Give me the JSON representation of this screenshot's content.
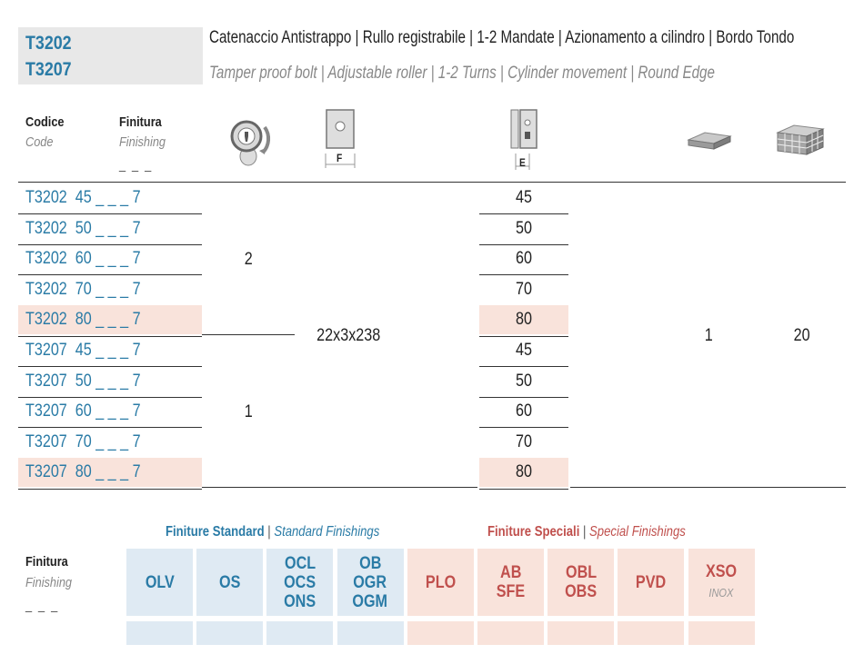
{
  "header": {
    "codes": [
      "T3202",
      "T3207"
    ],
    "title_it": "Catenaccio Antistrappo | Rullo registrabile | 1-2 Mandate | Azionamento a cilindro | Bordo Tondo",
    "title_en": "Tamper proof bolt | Adjustable roller | 1-2 Turns | Cylinder movement | Round Edge"
  },
  "columns": {
    "code_it": "Codice",
    "code_en": "Code",
    "finish_it": "Finitura",
    "finish_en": "Finishing",
    "finish_dash": "_ _ _",
    "f_label": "F",
    "e_label": "E"
  },
  "rows": [
    {
      "code": "T3202  45 _ _ _ 7",
      "e": "45",
      "highlight": false
    },
    {
      "code": "T3202  50 _ _ _ 7",
      "e": "50",
      "highlight": false
    },
    {
      "code": "T3202  60 _ _ _ 7",
      "e": "60",
      "highlight": false
    },
    {
      "code": "T3202  70 _ _ _ 7",
      "e": "70",
      "highlight": false
    },
    {
      "code": "T3202  80 _ _ _ 7",
      "e": "80",
      "highlight": true
    },
    {
      "code": "T3207  45 _ _ _ 7",
      "e": "45",
      "highlight": false
    },
    {
      "code": "T3207  50 _ _ _ 7",
      "e": "50",
      "highlight": false
    },
    {
      "code": "T3207  60 _ _ _ 7",
      "e": "60",
      "highlight": false
    },
    {
      "code": "T3207  70 _ _ _ 7",
      "e": "70",
      "highlight": false
    },
    {
      "code": "T3207  80 _ _ _ 7",
      "e": "80",
      "highlight": true
    }
  ],
  "values": {
    "turns_t3202": "2",
    "turns_t3207": "1",
    "front_size": "22x3x238",
    "pack_qty": "1",
    "box_qty": "20"
  },
  "finishings": {
    "standard_it": "Finiture Standard",
    "standard_en": "Standard Finishings",
    "special_it": "Finiture Speciali",
    "special_en": "Special Finishings",
    "label_it": "Finitura",
    "label_en": "Finishing",
    "label_dash": "_ _ _",
    "standard": [
      {
        "lines": [
          "OLV"
        ]
      },
      {
        "lines": [
          "OS"
        ]
      },
      {
        "lines": [
          "OCL",
          "OCS",
          "ONS"
        ]
      },
      {
        "lines": [
          "OB",
          "OGR",
          "OGM"
        ]
      }
    ],
    "special": [
      {
        "lines": [
          "PLO"
        ]
      },
      {
        "lines": [
          "AB",
          "SFE"
        ]
      },
      {
        "lines": [
          "OBL",
          "OBS"
        ]
      },
      {
        "lines": [
          "PVD"
        ]
      },
      {
        "lines": [
          "XSO"
        ],
        "sub": "INOX"
      }
    ],
    "colors": {
      "standard": "#2a7ba6",
      "special": "#c0504d",
      "std_bg": "#dfeaf3",
      "spc_bg": "#f9e3db"
    }
  }
}
